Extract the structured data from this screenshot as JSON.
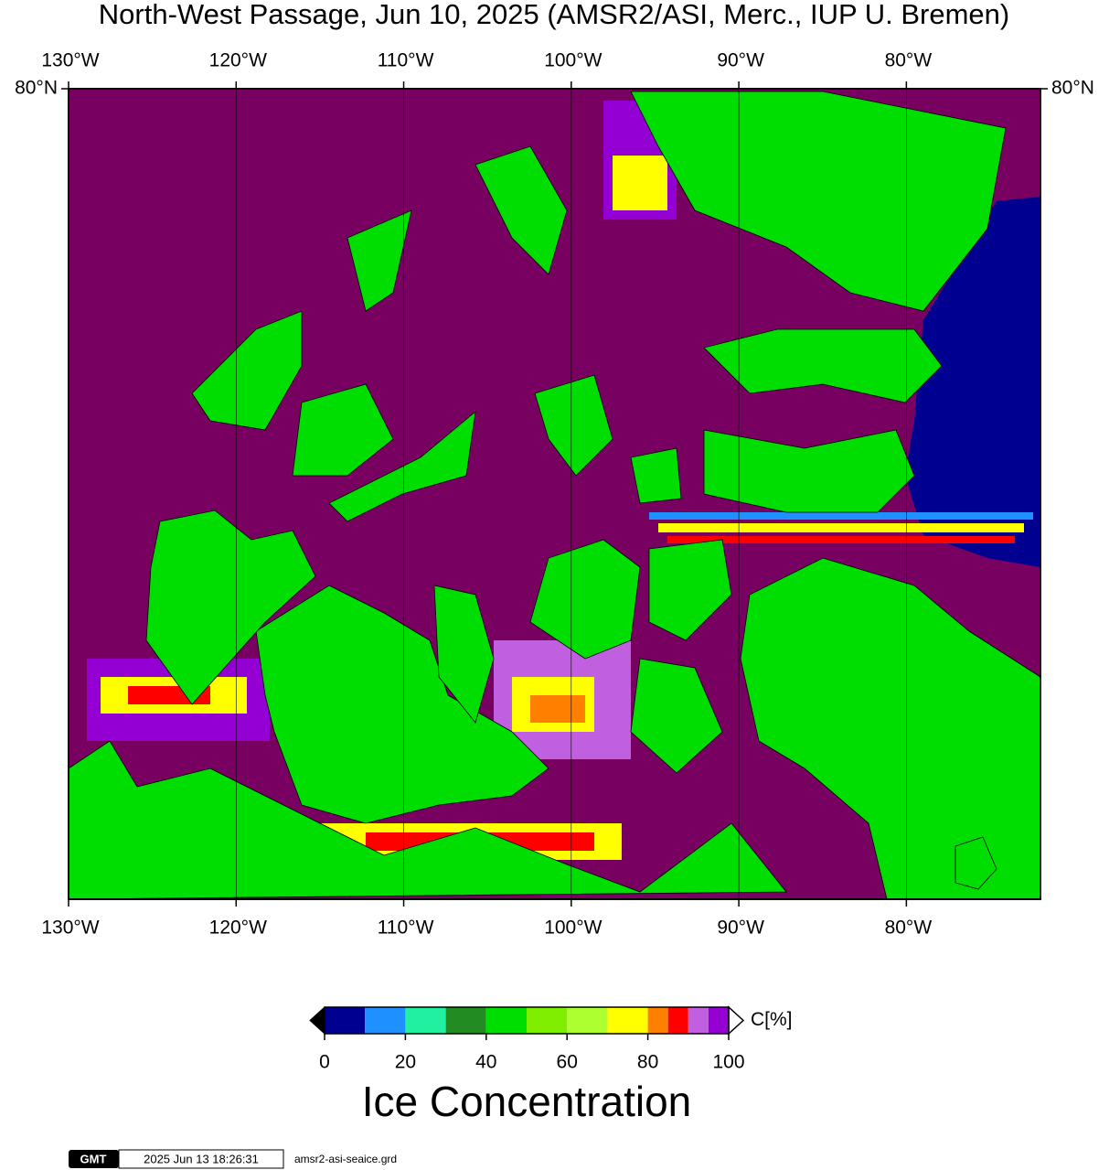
{
  "map": {
    "title": "North-West Passage, Jun 10, 2025 (AMSR2/ASI, Merc., IUP U. Bremen)",
    "projection": "mercator",
    "xlim": [
      -130,
      -72
    ],
    "ylim": [
      67,
      80
    ],
    "xticks": [
      {
        "value": -130,
        "label": "130°W"
      },
      {
        "value": -120,
        "label": "120°W"
      },
      {
        "value": -110,
        "label": "110°W"
      },
      {
        "value": -100,
        "label": "100°W"
      },
      {
        "value": -90,
        "label": "90°W"
      },
      {
        "value": -80,
        "label": "80°W"
      }
    ],
    "yticks": [
      {
        "value": 80,
        "label": "80°N"
      }
    ],
    "grid": true,
    "colorbar": {
      "bounds": [
        0,
        10,
        20,
        30,
        40,
        50,
        60,
        70,
        80,
        85,
        90,
        95,
        100
      ],
      "colors": [
        "#000090",
        "#1e90ff",
        "#20f0a0",
        "#228b22",
        "#00dd00",
        "#7fee00",
        "#adff2f",
        "#ffff00",
        "#ff7f00",
        "#ff0000",
        "#c060e0",
        "#9400d3"
      ],
      "ticks": [
        0,
        20,
        40,
        60,
        80,
        100
      ],
      "label": "C[%]",
      "title": "Ice Concentration"
    },
    "footer": {
      "logo": "GMT",
      "timestamp": "2025 Jun 13 18:26:31",
      "file": "amsr2-asi-seaice.grd"
    }
  }
}
